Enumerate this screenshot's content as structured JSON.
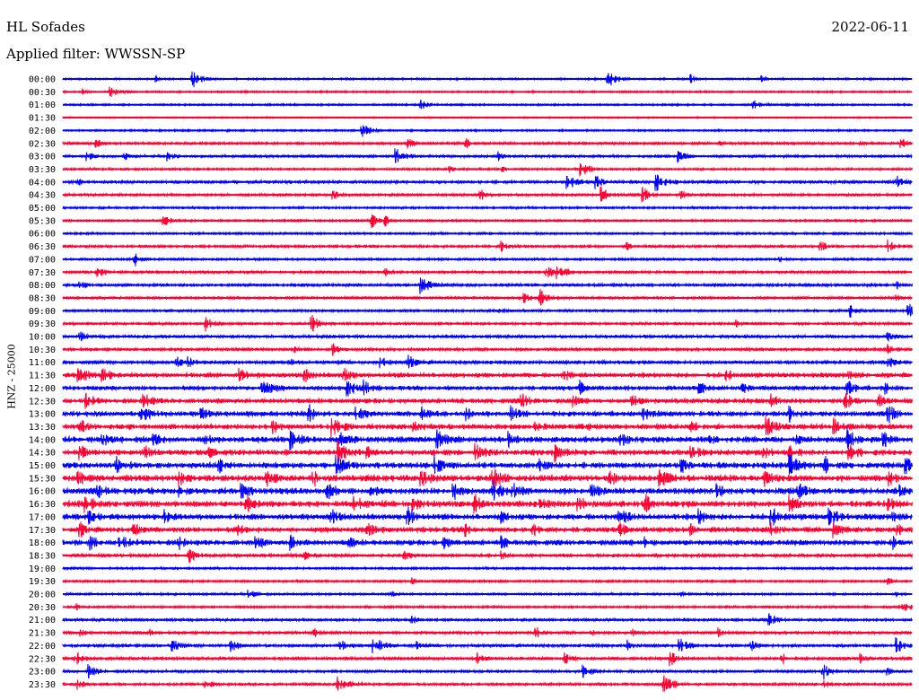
{
  "header": {
    "station": "HL Sofades",
    "date": "2022-06-11",
    "filter_label": "Applied filter: WWSSN-SP"
  },
  "chart_data": {
    "type": "line",
    "title": "HL Sofades",
    "ylabel": "HNZ - 25000",
    "colors": {
      "even_row": "#0000ff",
      "odd_row": "#ff0033"
    },
    "rows": [
      {
        "label": "00:00",
        "noise": 1,
        "events": [
          [
            215,
            9
          ],
          [
            678,
            9
          ],
          [
            771,
            4
          ],
          [
            850,
            3
          ],
          [
            175,
            3
          ]
        ]
      },
      {
        "label": "00:30",
        "noise": 1,
        "events": [
          [
            124,
            8
          ],
          [
            92,
            3
          ]
        ]
      },
      {
        "label": "01:00",
        "noise": 1,
        "events": [
          [
            470,
            6
          ],
          [
            840,
            7
          ]
        ]
      },
      {
        "label": "01:30",
        "noise": 0.6,
        "events": []
      },
      {
        "label": "02:00",
        "noise": 1,
        "events": [
          [
            404,
            8
          ],
          [
            255,
            2
          ]
        ]
      },
      {
        "label": "02:30",
        "noise": 2,
        "events": [
          [
            108,
            4
          ],
          [
            455,
            5
          ],
          [
            520,
            4
          ],
          [
            800,
            3
          ],
          [
            1005,
            5
          ],
          [
            958,
            3
          ]
        ]
      },
      {
        "label": "03:00",
        "noise": 2,
        "events": [
          [
            97,
            5
          ],
          [
            187,
            5
          ],
          [
            441,
            8
          ],
          [
            557,
            4
          ],
          [
            757,
            6
          ],
          [
            140,
            3
          ]
        ]
      },
      {
        "label": "03:30",
        "noise": 1.5,
        "events": [
          [
            648,
            8
          ],
          [
            560,
            3
          ],
          [
            502,
            3
          ]
        ]
      },
      {
        "label": "04:00",
        "noise": 2.5,
        "events": [
          [
            633,
            9
          ],
          [
            665,
            6
          ],
          [
            732,
            8
          ],
          [
            1000,
            5
          ],
          [
            88,
            3
          ]
        ]
      },
      {
        "label": "04:30",
        "noise": 2,
        "events": [
          [
            372,
            5
          ],
          [
            536,
            5
          ],
          [
            671,
            7
          ],
          [
            717,
            7
          ],
          [
            760,
            4
          ]
        ]
      },
      {
        "label": "05:00",
        "noise": 1.5,
        "events": []
      },
      {
        "label": "05:30",
        "noise": 1.5,
        "events": [
          [
            183,
            6
          ],
          [
            415,
            7
          ],
          [
            430,
            4
          ]
        ]
      },
      {
        "label": "06:00",
        "noise": 1.5,
        "events": []
      },
      {
        "label": "06:30",
        "noise": 2,
        "events": [
          [
            560,
            5
          ],
          [
            915,
            5
          ],
          [
            990,
            6
          ],
          [
            700,
            3
          ]
        ]
      },
      {
        "label": "07:00",
        "noise": 1.5,
        "events": [
          [
            150,
            7
          ],
          [
            870,
            3
          ]
        ]
      },
      {
        "label": "07:30",
        "noise": 2,
        "events": [
          [
            108,
            6
          ],
          [
            430,
            4
          ],
          [
            610,
            6
          ],
          [
            622,
            8
          ]
        ]
      },
      {
        "label": "08:00",
        "noise": 2.5,
        "events": [
          [
            470,
            9
          ],
          [
            90,
            4
          ],
          [
            1000,
            3
          ]
        ]
      },
      {
        "label": "08:30",
        "noise": 2,
        "events": [
          [
            585,
            5
          ],
          [
            602,
            8
          ],
          [
            1000,
            3
          ]
        ]
      },
      {
        "label": "09:00",
        "noise": 2,
        "events": [
          [
            948,
            6
          ],
          [
            1013,
            9
          ],
          [
            558,
            3
          ]
        ]
      },
      {
        "label": "09:30",
        "noise": 2,
        "events": [
          [
            230,
            7
          ],
          [
            348,
            8
          ],
          [
            820,
            3
          ]
        ]
      },
      {
        "label": "10:00",
        "noise": 2.5,
        "events": [
          [
            90,
            4
          ],
          [
            990,
            4
          ]
        ]
      },
      {
        "label": "10:30",
        "noise": 2.5,
        "events": [
          [
            330,
            4
          ],
          [
            372,
            5
          ],
          [
            990,
            4
          ]
        ]
      },
      {
        "label": "11:00",
        "noise": 3,
        "events": [
          [
            195,
            7
          ],
          [
            210,
            6
          ],
          [
            320,
            5
          ],
          [
            425,
            5
          ],
          [
            455,
            7
          ],
          [
            990,
            6
          ]
        ]
      },
      {
        "label": "11:30",
        "noise": 4,
        "events": [
          [
            88,
            9
          ],
          [
            115,
            7
          ],
          [
            268,
            6
          ],
          [
            340,
            6
          ],
          [
            384,
            7
          ],
          [
            630,
            5
          ],
          [
            810,
            5
          ],
          [
            940,
            6
          ]
        ]
      },
      {
        "label": "12:00",
        "noise": 3.5,
        "events": [
          [
            293,
            9
          ],
          [
            388,
            8
          ],
          [
            405,
            7
          ],
          [
            646,
            7
          ],
          [
            780,
            6
          ],
          [
            828,
            6
          ],
          [
            945,
            8
          ],
          [
            988,
            5
          ]
        ]
      },
      {
        "label": "12:30",
        "noise": 4,
        "events": [
          [
            96,
            7
          ],
          [
            160,
            8
          ],
          [
            580,
            8
          ],
          [
            640,
            5
          ],
          [
            705,
            6
          ],
          [
            860,
            6
          ],
          [
            940,
            9
          ],
          [
            980,
            5
          ]
        ]
      },
      {
        "label": "13:00",
        "noise": 4.5,
        "events": [
          [
            155,
            9
          ],
          [
            225,
            6
          ],
          [
            345,
            8
          ],
          [
            398,
            7
          ],
          [
            470,
            8
          ],
          [
            520,
            6
          ],
          [
            570,
            7
          ],
          [
            718,
            6
          ],
          [
            880,
            7
          ],
          [
            990,
            8
          ]
        ]
      },
      {
        "label": "13:30",
        "noise": 4.5,
        "events": [
          [
            90,
            6
          ],
          [
            305,
            6
          ],
          [
            370,
            9
          ],
          [
            460,
            8
          ],
          [
            595,
            6
          ],
          [
            650,
            6
          ],
          [
            770,
            6
          ],
          [
            855,
            9
          ],
          [
            930,
            7
          ]
        ]
      },
      {
        "label": "14:00",
        "noise": 5,
        "events": [
          [
            115,
            6
          ],
          [
            170,
            7
          ],
          [
            230,
            6
          ],
          [
            325,
            9
          ],
          [
            380,
            8
          ],
          [
            488,
            8
          ],
          [
            568,
            6
          ],
          [
            690,
            8
          ],
          [
            790,
            6
          ],
          [
            885,
            7
          ],
          [
            945,
            9
          ],
          [
            985,
            7
          ]
        ]
      },
      {
        "label": "14:30",
        "noise": 5,
        "events": [
          [
            90,
            6
          ],
          [
            160,
            7
          ],
          [
            230,
            6
          ],
          [
            378,
            9
          ],
          [
            410,
            6
          ],
          [
            530,
            8
          ],
          [
            620,
            8
          ],
          [
            770,
            8
          ],
          [
            850,
            7
          ],
          [
            880,
            6
          ],
          [
            945,
            9
          ]
        ]
      },
      {
        "label": "15:00",
        "noise": 5,
        "events": [
          [
            130,
            7
          ],
          [
            245,
            6
          ],
          [
            375,
            9
          ],
          [
            485,
            8
          ],
          [
            600,
            7
          ],
          [
            760,
            6
          ],
          [
            880,
            9
          ],
          [
            920,
            8
          ],
          [
            1010,
            7
          ]
        ]
      },
      {
        "label": "15:30",
        "noise": 5.5,
        "events": [
          [
            85,
            7
          ],
          [
            200,
            6
          ],
          [
            298,
            8
          ],
          [
            350,
            7
          ],
          [
            470,
            8
          ],
          [
            550,
            9
          ],
          [
            680,
            8
          ],
          [
            735,
            9
          ],
          [
            850,
            8
          ],
          [
            990,
            7
          ]
        ]
      },
      {
        "label": "16:00",
        "noise": 5.5,
        "events": [
          [
            110,
            6
          ],
          [
            200,
            5
          ],
          [
            270,
            7
          ],
          [
            365,
            8
          ],
          [
            410,
            7
          ],
          [
            505,
            8
          ],
          [
            550,
            9
          ],
          [
            570,
            8
          ],
          [
            660,
            7
          ],
          [
            800,
            6
          ],
          [
            890,
            7
          ],
          [
            1000,
            6
          ]
        ]
      },
      {
        "label": "16:30",
        "noise": 5.5,
        "events": [
          [
            95,
            7
          ],
          [
            275,
            7
          ],
          [
            395,
            8
          ],
          [
            460,
            7
          ],
          [
            530,
            7
          ],
          [
            600,
            6
          ],
          [
            645,
            7
          ],
          [
            720,
            7
          ],
          [
            880,
            8
          ],
          [
            990,
            6
          ]
        ]
      },
      {
        "label": "17:00",
        "noise": 5,
        "events": [
          [
            100,
            6
          ],
          [
            185,
            6
          ],
          [
            370,
            7
          ],
          [
            455,
            9
          ],
          [
            560,
            6
          ],
          [
            690,
            8
          ],
          [
            780,
            7
          ],
          [
            860,
            8
          ],
          [
            925,
            8
          ],
          [
            990,
            6
          ]
        ]
      },
      {
        "label": "17:30",
        "noise": 4.5,
        "events": [
          [
            90,
            6
          ],
          [
            150,
            5
          ],
          [
            265,
            5
          ],
          [
            410,
            7
          ],
          [
            520,
            6
          ],
          [
            595,
            6
          ],
          [
            690,
            7
          ],
          [
            770,
            6
          ],
          [
            860,
            6
          ],
          [
            930,
            6
          ],
          [
            1000,
            6
          ]
        ]
      },
      {
        "label": "18:00",
        "noise": 4.5,
        "events": [
          [
            100,
            7
          ],
          [
            133,
            8
          ],
          [
            200,
            5
          ],
          [
            285,
            6
          ],
          [
            325,
            7
          ],
          [
            390,
            5
          ],
          [
            495,
            6
          ],
          [
            560,
            5
          ],
          [
            720,
            6
          ],
          [
            995,
            5
          ]
        ]
      },
      {
        "label": "18:30",
        "noise": 3,
        "events": [
          [
            210,
            7
          ],
          [
            448,
            6
          ],
          [
            340,
            4
          ],
          [
            560,
            4
          ]
        ]
      },
      {
        "label": "19:00",
        "noise": 1.5,
        "events": []
      },
      {
        "label": "19:30",
        "noise": 1.5,
        "events": [
          [
            990,
            4
          ],
          [
            460,
            3
          ]
        ]
      },
      {
        "label": "20:00",
        "noise": 1.5,
        "events": [
          [
            278,
            5
          ],
          [
            437,
            4
          ],
          [
            760,
            3
          ],
          [
            1000,
            3
          ]
        ]
      },
      {
        "label": "20:30",
        "noise": 1.5,
        "events": [
          [
            1003,
            9
          ],
          [
            85,
            3
          ]
        ]
      },
      {
        "label": "21:00",
        "noise": 2,
        "events": [
          [
            858,
            6
          ],
          [
            460,
            3
          ]
        ]
      },
      {
        "label": "21:30",
        "noise": 2.5,
        "events": [
          [
            90,
            4
          ],
          [
            165,
            4
          ],
          [
            350,
            4
          ],
          [
            598,
            5
          ],
          [
            660,
            4
          ],
          [
            705,
            4
          ],
          [
            800,
            4
          ]
        ]
      },
      {
        "label": "22:00",
        "noise": 2.5,
        "events": [
          [
            193,
            6
          ],
          [
            258,
            6
          ],
          [
            380,
            6
          ],
          [
            417,
            9
          ],
          [
            466,
            4
          ],
          [
            700,
            5
          ],
          [
            758,
            7
          ],
          [
            838,
            5
          ],
          [
            1000,
            7
          ]
        ]
      },
      {
        "label": "22:30",
        "noise": 2.5,
        "events": [
          [
            85,
            6
          ],
          [
            532,
            5
          ],
          [
            630,
            5
          ],
          [
            748,
            6
          ],
          [
            872,
            6
          ],
          [
            960,
            4
          ]
        ]
      },
      {
        "label": "23:00",
        "noise": 2,
        "events": [
          [
            100,
            6
          ],
          [
            650,
            8
          ],
          [
            918,
            7
          ],
          [
            990,
            3
          ]
        ]
      },
      {
        "label": "23:30",
        "noise": 2,
        "events": [
          [
            88,
            5
          ],
          [
            230,
            5
          ],
          [
            377,
            9
          ],
          [
            740,
            9
          ],
          [
            920,
            3
          ]
        ]
      }
    ]
  }
}
